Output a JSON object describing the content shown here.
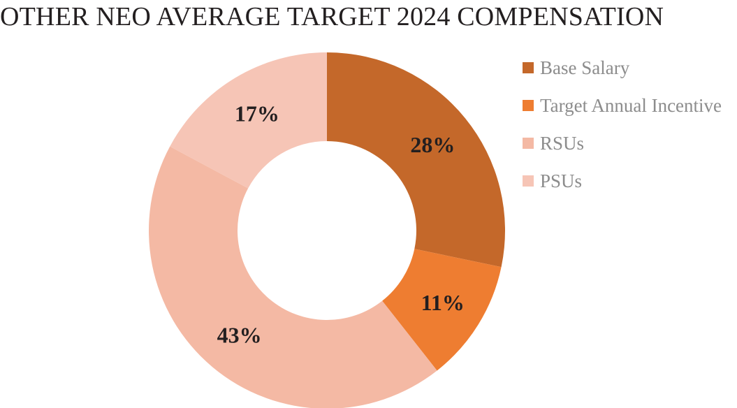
{
  "chart_data": {
    "type": "pie",
    "title": "OTHER NEO AVERAGE TARGET 2024 COMPENSATION",
    "donut": true,
    "categories": [
      "Base Salary",
      "Target Annual Incentive",
      "RSUs",
      "PSUs"
    ],
    "values": [
      28,
      11,
      43,
      17
    ],
    "labels": [
      "28%",
      "11%",
      "43%",
      "17%"
    ],
    "colors": [
      "#c4682a",
      "#ee7d31",
      "#f4b9a4",
      "#f6c5b6"
    ],
    "legend_position": "right"
  }
}
